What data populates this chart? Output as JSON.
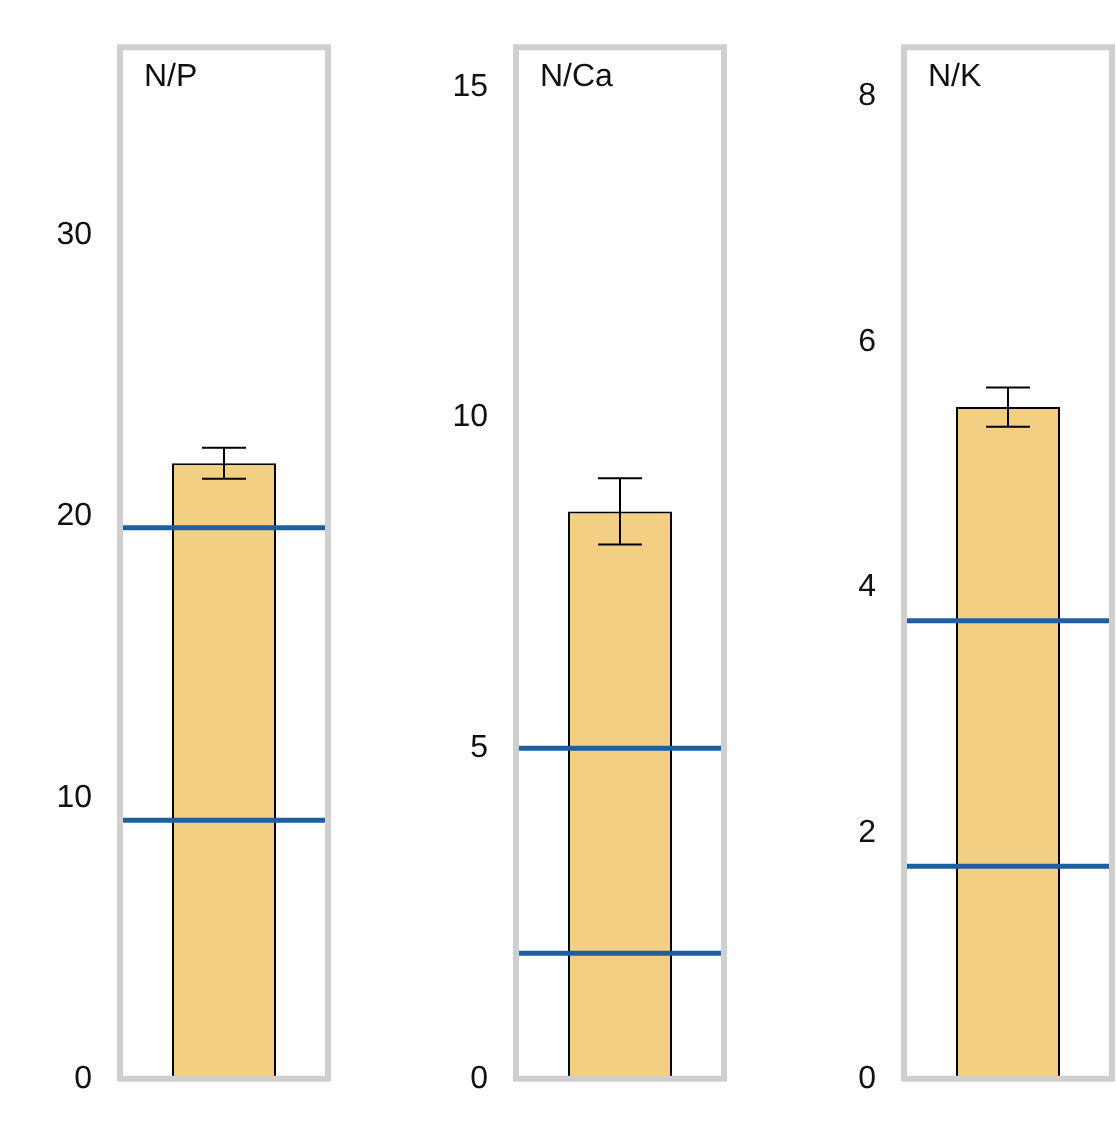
{
  "chart_data": [
    {
      "type": "bar",
      "title": "N/P",
      "categories": [
        null
      ],
      "values": [
        21.9
      ],
      "errors": [
        0.55
      ],
      "color": "#f3cf84",
      "ylim": [
        0,
        36.7
      ],
      "yticks": [
        0,
        10,
        20,
        30
      ],
      "grid": false,
      "ref_lines": [
        {
          "axis": "y",
          "value": 19.6,
          "color": "#1f5fa0"
        },
        {
          "axis": "y",
          "value": 9.2,
          "color": "#1f5fa0"
        }
      ]
    },
    {
      "type": "bar",
      "title": "N/Ca",
      "categories": [
        null
      ],
      "values": [
        8.58
      ],
      "errors": [
        0.5
      ],
      "color": "#f3cf84",
      "ylim": [
        0,
        15.6
      ],
      "yticks": [
        0,
        5,
        10,
        15
      ],
      "grid": false,
      "ref_lines": [
        {
          "axis": "y",
          "value": 5.0,
          "color": "#1f5fa0"
        },
        {
          "axis": "y",
          "value": 1.9,
          "color": "#1f5fa0"
        }
      ]
    },
    {
      "type": "bar",
      "title": "N/K",
      "categories": [
        null
      ],
      "values": [
        5.47
      ],
      "errors": [
        0.16
      ],
      "color": "#f3cf84",
      "ylim": [
        0,
        8.4
      ],
      "yticks": [
        0,
        2,
        4,
        6,
        8
      ],
      "grid": false,
      "ref_lines": [
        {
          "axis": "y",
          "value": 3.73,
          "color": "#1f5fa0"
        },
        {
          "axis": "y",
          "value": 1.73,
          "color": "#1f5fa0"
        }
      ]
    }
  ]
}
